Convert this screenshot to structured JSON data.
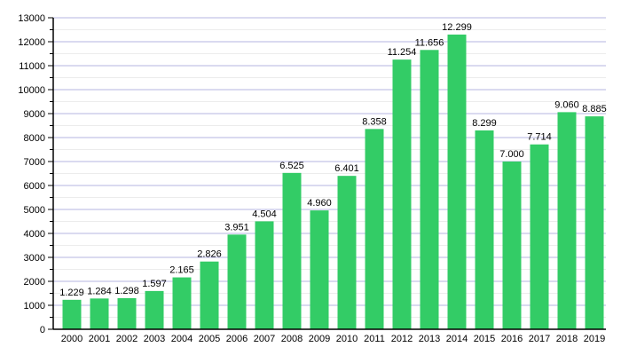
{
  "chart_data": {
    "type": "bar",
    "title": "",
    "xlabel": "",
    "ylabel": "",
    "ylim": [
      0,
      13000
    ],
    "grid": true,
    "categories": [
      "2000",
      "2001",
      "2002",
      "2003",
      "2004",
      "2005",
      "2006",
      "2007",
      "2008",
      "2009",
      "2010",
      "2011",
      "2012",
      "2013",
      "2014",
      "2015",
      "2016",
      "2017",
      "2018",
      "2019"
    ],
    "values": [
      1229,
      1284,
      1298,
      1597,
      2165,
      2826,
      3951,
      4504,
      6525,
      4960,
      6401,
      8358,
      11254,
      11656,
      12299,
      8299,
      7000,
      7714,
      9060,
      8885
    ],
    "value_labels": [
      "1.229",
      "1.284",
      "1.298",
      "1.597",
      "2.165",
      "2.826",
      "3.951",
      "4.504",
      "6.525",
      "4.960",
      "6.401",
      "8.358",
      "11.254",
      "11.656",
      "12.299",
      "8.299",
      "7.000",
      "7.714",
      "9.060",
      "8.885"
    ],
    "yticks": [
      "0",
      "1000",
      "2000",
      "3000",
      "4000",
      "5000",
      "6000",
      "7000",
      "8000",
      "9000",
      "10000",
      "11000",
      "12000",
      "13000"
    ],
    "colors": {
      "bar": "#33cc66",
      "major_grid": "#b4b4e0",
      "minor_grid": "#ececec"
    }
  }
}
